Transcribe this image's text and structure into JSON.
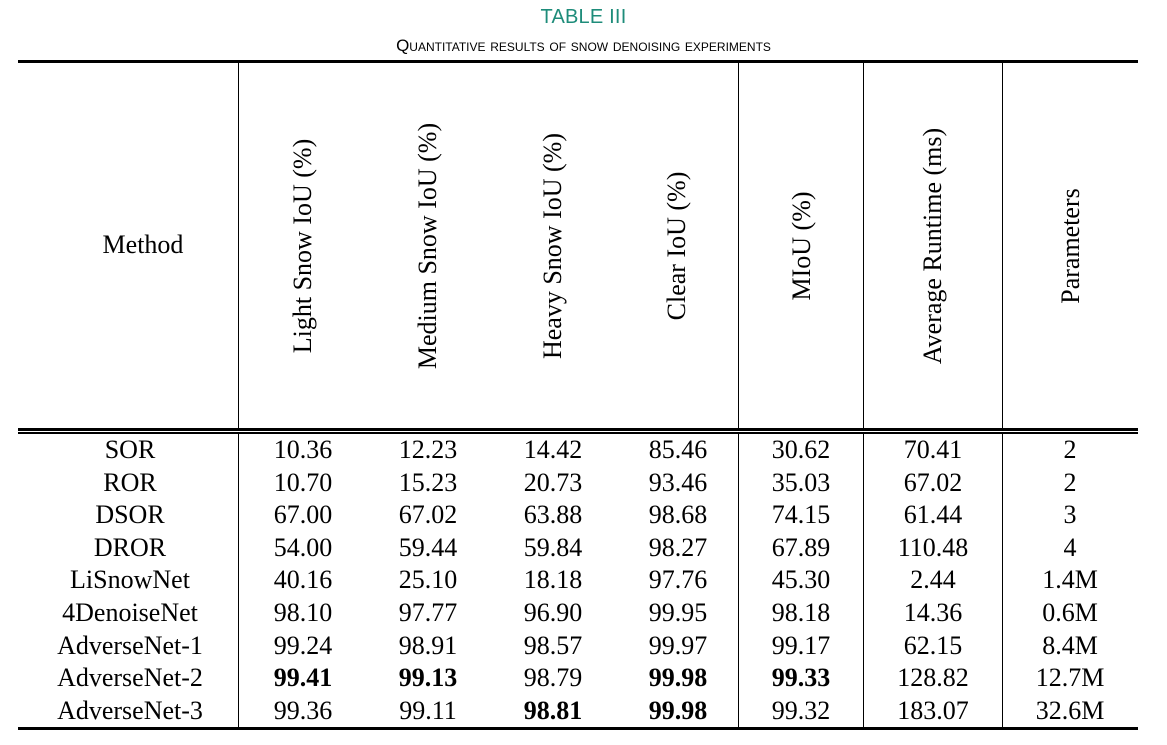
{
  "caption": {
    "title": "TABLE III",
    "subtitle": "Quantitative results of snow denoising experiments"
  },
  "headers": {
    "method": "Method",
    "columns": [
      "Light Snow IoU (%)",
      "Medium Snow IoU (%)",
      "Heavy Snow IoU (%)",
      "Clear IoU (%)",
      "MIoU (%)",
      "Average Runtime (ms)",
      "Parameters"
    ]
  },
  "rows": [
    {
      "method": "SOR",
      "values": [
        "10.36",
        "12.23",
        "14.42",
        "85.46",
        "30.62",
        "70.41",
        "2"
      ],
      "bold": []
    },
    {
      "method": "ROR",
      "values": [
        "10.70",
        "15.23",
        "20.73",
        "93.46",
        "35.03",
        "67.02",
        "2"
      ],
      "bold": []
    },
    {
      "method": "DSOR",
      "values": [
        "67.00",
        "67.02",
        "63.88",
        "98.68",
        "74.15",
        "61.44",
        "3"
      ],
      "bold": []
    },
    {
      "method": "DROR",
      "values": [
        "54.00",
        "59.44",
        "59.84",
        "98.27",
        "67.89",
        "110.48",
        "4"
      ],
      "bold": []
    },
    {
      "method": "LiSnowNet",
      "values": [
        "40.16",
        "25.10",
        "18.18",
        "97.76",
        "45.30",
        "2.44",
        "1.4M"
      ],
      "bold": []
    },
    {
      "method": "4DenoiseNet",
      "values": [
        "98.10",
        "97.77",
        "96.90",
        "99.95",
        "98.18",
        "14.36",
        "0.6M"
      ],
      "bold": []
    },
    {
      "method": "AdverseNet-1",
      "values": [
        "99.24",
        "98.91",
        "98.57",
        "99.97",
        "99.17",
        "62.15",
        "8.4M"
      ],
      "bold": []
    },
    {
      "method": "AdverseNet-2",
      "values": [
        "99.41",
        "99.13",
        "98.79",
        "99.98",
        "99.33",
        "128.82",
        "12.7M"
      ],
      "bold": [
        0,
        1,
        3,
        4
      ]
    },
    {
      "method": "AdverseNet-3",
      "values": [
        "99.36",
        "99.11",
        "98.81",
        "99.98",
        "99.32",
        "183.07",
        "32.6M"
      ],
      "bold": [
        2,
        3
      ]
    }
  ]
}
